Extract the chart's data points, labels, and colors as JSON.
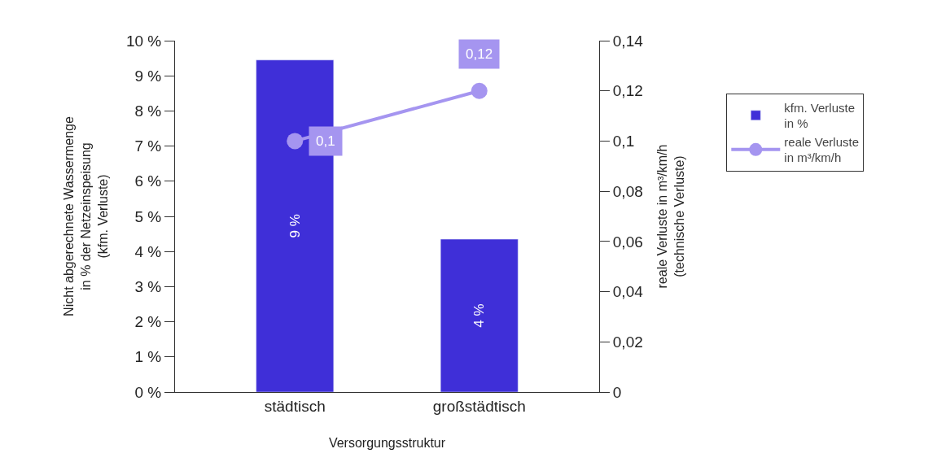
{
  "chart_data": {
    "type": "bar",
    "xlabel": "Versorgungsstruktur",
    "ylabel": "Nicht abgerechnete Wassermenge\nin % der Netzeinspeisung\n(kfm. Verluste)",
    "y2label": "reale Verluste in m³/km/h\n(technische Verluste)",
    "categories": [
      "städtisch",
      "großstädtisch"
    ],
    "series": [
      {
        "name": "kfm. Verluste\nin %",
        "color": "#3f2fd8",
        "values": [
          9.45,
          4.35
        ],
        "value_labels": [
          "9 %",
          "4 %"
        ]
      },
      {
        "name": "reale Verluste\nin m³/km/h",
        "type": "line",
        "axis": "y2",
        "color": "#a595f0",
        "values": [
          0.1,
          0.12
        ],
        "value_labels": [
          "0,1",
          "0,12"
        ],
        "marker": "circle"
      }
    ],
    "ylim": [
      0,
      10
    ],
    "yticks": [
      {
        "value": 0,
        "label": "0 %"
      },
      {
        "value": 1,
        "label": "1 %"
      },
      {
        "value": 2,
        "label": "2 %"
      },
      {
        "value": 3,
        "label": "3 %"
      },
      {
        "value": 4,
        "label": "4 %"
      },
      {
        "value": 5,
        "label": "5 %"
      },
      {
        "value": 6,
        "label": "6 %"
      },
      {
        "value": 7,
        "label": "7 %"
      },
      {
        "value": 8,
        "label": "8 %"
      },
      {
        "value": 9,
        "label": "9 %"
      },
      {
        "value": 10,
        "label": "10 %"
      }
    ],
    "y2lim": [
      0,
      0.14
    ],
    "y2ticks": [
      {
        "value": 0,
        "label": "0"
      },
      {
        "value": 0.02,
        "label": "0,02"
      },
      {
        "value": 0.04,
        "label": "0,04"
      },
      {
        "value": 0.06,
        "label": "0,06"
      },
      {
        "value": 0.08,
        "label": "0,08"
      },
      {
        "value": 0.1,
        "label": "0,1"
      },
      {
        "value": 0.12,
        "label": "0,12"
      },
      {
        "value": 0.14,
        "label": "0,14"
      }
    ],
    "grid": false,
    "legend": "right"
  }
}
